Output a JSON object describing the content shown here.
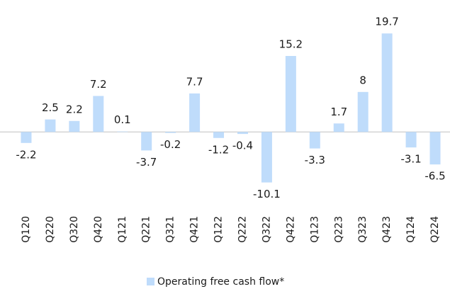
{
  "chart_data": {
    "type": "bar",
    "categories": [
      "Q120",
      "Q220",
      "Q320",
      "Q420",
      "Q121",
      "Q221",
      "Q321",
      "Q421",
      "Q122",
      "Q222",
      "Q322",
      "Q422",
      "Q123",
      "Q223",
      "Q323",
      "Q423",
      "Q124",
      "Q224"
    ],
    "series": [
      {
        "name": "Operating free cash flow*",
        "color": "#bfdcfb",
        "values": [
          -2.2,
          2.5,
          2.2,
          7.2,
          0.1,
          -3.7,
          -0.2,
          7.7,
          -1.2,
          -0.4,
          -10.1,
          15.2,
          -3.3,
          1.7,
          8,
          19.7,
          -3.1,
          -6.5
        ]
      }
    ],
    "ylim": [
      -12,
      22
    ],
    "legend": "bottom"
  }
}
